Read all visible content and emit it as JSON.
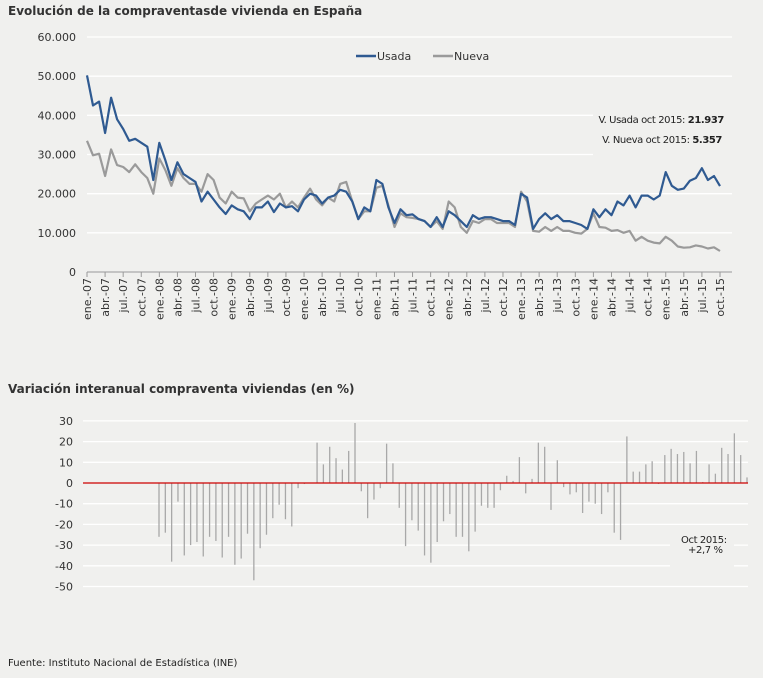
{
  "chart_data": [
    {
      "type": "line",
      "title": "Evolución de la compraventasde vivienda en España",
      "ylim": [
        0,
        60000
      ],
      "yticks": [
        "0",
        "10.000",
        "20.000",
        "30.000",
        "40.000",
        "50.000",
        "60.000"
      ],
      "ytick_values": [
        0,
        10000,
        20000,
        30000,
        40000,
        50000,
        60000
      ],
      "x_start": "ene.-07",
      "x_end": "oct.-15",
      "xtick_labels": [
        "ene.-07",
        "abr.-07",
        "jul.-07",
        "oct.-07",
        "ene.-08",
        "abr.-08",
        "jul.-08",
        "oct.-08",
        "ene.-09",
        "abr.-09",
        "jul.-09",
        "oct.-09",
        "ene.-10",
        "abr.-10",
        "jul.-10",
        "oct.-10",
        "ene.-11",
        "abr.-11",
        "jul.-11",
        "oct.-11",
        "ene.-12",
        "abr.-12",
        "jul.-12",
        "oct.-12",
        "ene.-13",
        "abr.-13",
        "jul.-13",
        "oct.-13",
        "ene.-14",
        "abr.-14",
        "jul.-14",
        "oct.-14",
        "ene.-15",
        "abr.-15",
        "jul.-15",
        "oct.-15"
      ],
      "grid": true,
      "legend_position": "top-center",
      "series": [
        {
          "name": "Usada",
          "color": "#2f5a91",
          "values": [
            50200,
            42500,
            43500,
            35500,
            44500,
            39000,
            36500,
            33500,
            34000,
            33000,
            32000,
            23500,
            33000,
            28500,
            23500,
            28000,
            25000,
            24000,
            23000,
            18000,
            20500,
            18500,
            16500,
            14800,
            17000,
            16000,
            15500,
            13500,
            16500,
            16500,
            18000,
            15300,
            17500,
            16500,
            16800,
            15500,
            18500,
            20000,
            19500,
            17500,
            19000,
            19500,
            21000,
            20500,
            18000,
            13500,
            16500,
            15500,
            23500,
            22500,
            16500,
            12500,
            16000,
            14500,
            14700,
            13500,
            13000,
            11500,
            14000,
            11500,
            15500,
            14500,
            13000,
            11500,
            14500,
            13500,
            14000,
            14000,
            13500,
            13000,
            13000,
            12000,
            20000,
            19000,
            11000,
            13500,
            15000,
            13500,
            14500,
            13000,
            13000,
            12500,
            12000,
            11000,
            16000,
            14000,
            16000,
            14500,
            18000,
            17000,
            19500,
            16500,
            19500,
            19500,
            18500,
            19500,
            25500,
            22000,
            21000,
            21300,
            23300,
            24000,
            26500,
            23500,
            24500,
            21937
          ]
        },
        {
          "name": "Nueva",
          "color": "#9a9a9a",
          "values": [
            33500,
            29800,
            30200,
            24500,
            31300,
            27300,
            26800,
            25500,
            27500,
            25500,
            24000,
            20000,
            29000,
            26000,
            22000,
            26500,
            24000,
            22500,
            22500,
            20500,
            25000,
            23500,
            19000,
            17500,
            20500,
            19000,
            18800,
            15500,
            17500,
            18500,
            19500,
            18500,
            20000,
            16500,
            18000,
            16500,
            19000,
            21300,
            18500,
            17000,
            19000,
            18000,
            22500,
            23000,
            18000,
            13500,
            15500,
            15500,
            21500,
            22000,
            17000,
            11500,
            15000,
            14000,
            13800,
            13500,
            13000,
            11500,
            13000,
            11000,
            18000,
            16500,
            11500,
            10000,
            13000,
            12500,
            13500,
            13500,
            12500,
            12500,
            12500,
            11500,
            20500,
            18000,
            10500,
            10300,
            11500,
            10500,
            11500,
            10500,
            10500,
            10000,
            9800,
            11000,
            15000,
            11500,
            11300,
            10500,
            10700,
            10000,
            10500,
            8000,
            9000,
            8000,
            7500,
            7300,
            9000,
            8000,
            6500,
            6200,
            6300,
            6800,
            6500,
            6000,
            6300,
            5357
          ]
        }
      ],
      "annotations": {
        "usada_prefix": "V. Usada oct 2015: ",
        "usada_value": "21.937",
        "nueva_prefix": "V. Nueva oct 2015: ",
        "nueva_value": "5.357"
      }
    },
    {
      "type": "bar",
      "title": "Variación interanual compraventa viviendas (en %)",
      "ylim": [
        -50,
        30
      ],
      "yticks": [
        "30",
        "20",
        "10",
        "0",
        "-10",
        "-20",
        "-30",
        "-40",
        "-50"
      ],
      "ytick_values": [
        30,
        20,
        10,
        0,
        -10,
        -20,
        -30,
        -40,
        -50
      ],
      "x_start": "ene.-08",
      "x_end": "oct.-15",
      "grid": true,
      "zero_line_color": "#cc0000",
      "bar_color": "#a8a8a8",
      "values": [
        -26,
        -24,
        -38,
        -9,
        -35,
        -30,
        -28.5,
        -35.5,
        -26,
        -28,
        -36,
        -26,
        -39.5,
        -36.5,
        -24.5,
        -47,
        -31.5,
        -25,
        -17,
        -10.5,
        -17.5,
        -21,
        -2.5,
        -0.5,
        0,
        19.5,
        9,
        17.5,
        12,
        6.5,
        15.5,
        29,
        -4,
        -17,
        -8,
        -2.5,
        19,
        9.5,
        -12,
        -30.5,
        -18,
        -23,
        -35,
        -38.5,
        -28.5,
        -18.5,
        -15,
        -26,
        -26,
        -33,
        -23.5,
        -11,
        -12,
        -12,
        -3.5,
        3.5,
        1,
        12.5,
        -5,
        2,
        19.5,
        17.5,
        -13,
        11,
        -2,
        -5.5,
        -4.5,
        -14.5,
        -9,
        -10,
        -15,
        -4.5,
        -24,
        -27.5,
        22.5,
        5.5,
        5.5,
        9,
        10.5,
        -0.5,
        13.5,
        16.5,
        14,
        15,
        9.5,
        15.5,
        0.5,
        9,
        4.5,
        17,
        14,
        24,
        13.5,
        2.7
      ],
      "annotation": {
        "label": "Oct 2015:",
        "value": "+2,7 %",
        "value_color": "#2a9df4"
      }
    }
  ],
  "footer": "Fuente: Instituto Nacional de Estadística (INE)"
}
